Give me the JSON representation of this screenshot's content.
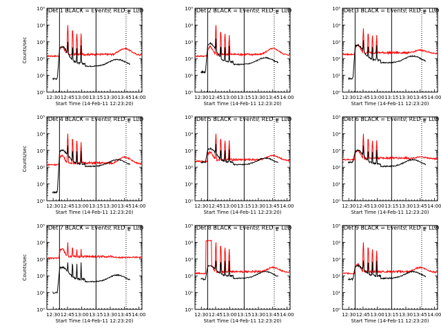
{
  "chart_data": [
    {
      "type": "line",
      "title": "Det 1  BLACK = Events, RED = LLD",
      "ylabel": "Counts/sec",
      "xlabel": "Start Time (14-Feb-11 12:23:20)",
      "xticks": [
        "12:30",
        "12:45",
        "13:00",
        "13:15",
        "13:30",
        "13:45",
        "14:00"
      ],
      "yticks": [
        "10⁰",
        "10¹",
        "10²",
        "10³",
        "10⁴",
        "10⁵"
      ],
      "ylim_log10": [
        0,
        5
      ],
      "xlim_minutes": [
        0,
        100
      ],
      "series": [
        {
          "name": "BLACK = Events",
          "color": "#000000",
          "start_log": 0.8,
          "peak_log": 2.7,
          "end_log": 1.5
        },
        {
          "name": "RED = LLD",
          "color": "#ff0000",
          "base_log": 2.2,
          "spikes_log": [
            4.0,
            3.9,
            3.6,
            3.5
          ],
          "hump_log": 2.6
        }
      ],
      "vlines_solid_min": [
        13.3,
        51.7
      ],
      "vlines_dotted_min": [
        83.3
      ],
      "marker": "E"
    },
    {
      "type": "line",
      "title": "Det 2  BLACK = Events, RED = LLD",
      "ylabel": "",
      "xlabel": "Start Time (14-Feb-11 12:23:20)",
      "xticks": [
        "12:30",
        "12:45",
        "13:00",
        "13:15",
        "13:30",
        "13:45",
        "14:00"
      ],
      "yticks": [
        "10⁰",
        "10¹",
        "10²",
        "10³",
        "10⁴",
        "10⁵"
      ],
      "ylim_log10": [
        0,
        5
      ],
      "xlim_minutes": [
        0,
        100
      ],
      "series": [
        {
          "name": "BLACK = Events",
          "color": "#000000",
          "start_log": 1.2,
          "peak_log": 2.9,
          "end_log": 1.6
        },
        {
          "name": "RED = LLD",
          "color": "#ff0000",
          "base_log": 2.2,
          "spikes_log": [
            4.0,
            3.8,
            3.6,
            3.4
          ],
          "hump_log": 2.6
        }
      ],
      "vlines_solid_min": [
        13.3,
        51.7
      ],
      "vlines_dotted_min": [
        83.3
      ],
      "marker": "E"
    },
    {
      "type": "line",
      "title": "Det 3  BLACK = Events, RED = LLD",
      "ylabel": "",
      "xlabel": "Start Time (14-Feb-11 12:23:20)",
      "xticks": [
        "12:30",
        "12:45",
        "13:00",
        "13:15",
        "13:30",
        "13:45",
        "14:00"
      ],
      "yticks": [
        "10⁰",
        "10¹",
        "10²",
        "10³",
        "10⁴",
        "10⁵"
      ],
      "ylim_log10": [
        0,
        5
      ],
      "xlim_minutes": [
        0,
        100
      ],
      "series": [
        {
          "name": "BLACK = Events",
          "color": "#000000",
          "start_log": 0.8,
          "peak_log": 2.8,
          "end_log": 1.7
        },
        {
          "name": "RED = LLD",
          "color": "#ff0000",
          "base_log": 2.3,
          "spikes_log": [
            3.8,
            3.7,
            3.5,
            3.4
          ],
          "hump_log": 2.5
        }
      ],
      "vlines_solid_min": [
        13.3,
        51.7
      ],
      "vlines_dotted_min": [
        83.3
      ],
      "marker": "E"
    },
    {
      "type": "line",
      "title": "Det 4  BLACK = Events, RED = LLD",
      "ylabel": "Counts/sec",
      "xlabel": "Start Time (14-Feb-11 12:23:20)",
      "xticks": [
        "12:30",
        "12:45",
        "13:00",
        "13:15",
        "13:30",
        "13:45",
        "14:00"
      ],
      "yticks": [
        "10⁰",
        "10¹",
        "10²",
        "10³",
        "10⁴",
        "10⁵"
      ],
      "ylim_log10": [
        0,
        5
      ],
      "xlim_minutes": [
        0,
        100
      ],
      "series": [
        {
          "name": "BLACK = Events",
          "color": "#000000",
          "start_log": 0.5,
          "peak_log": 3.0,
          "end_log": 2.0
        },
        {
          "name": "RED = LLD",
          "color": "#ff0000",
          "base_log": 2.2,
          "spikes_log": [
            4.0,
            3.9,
            3.7,
            3.5
          ],
          "hump_log": 2.6
        }
      ],
      "vlines_solid_min": [
        13.3,
        51.7
      ],
      "vlines_dotted_min": [
        83.3
      ],
      "marker": "E"
    },
    {
      "type": "line",
      "title": "Det 5  BLACK = Events, RED = LLD",
      "ylabel": "",
      "xlabel": "Start Time (14-Feb-11 12:23:20)",
      "xticks": [
        "12:30",
        "12:45",
        "13:00",
        "13:15",
        "13:30",
        "13:45",
        "14:00"
      ],
      "yticks": [
        "10⁰",
        "10¹",
        "10²",
        "10³",
        "10⁴",
        "10⁵"
      ],
      "ylim_log10": [
        0,
        5
      ],
      "xlim_minutes": [
        0,
        100
      ],
      "series": [
        {
          "name": "BLACK = Events",
          "color": "#000000",
          "start_log": 2.3,
          "peak_log": 3.1,
          "end_log": 2.1
        },
        {
          "name": "RED = LLD",
          "color": "#ff0000",
          "base_log": 2.4,
          "spikes_log": [
            4.0,
            3.9,
            3.7,
            3.6
          ],
          "hump_log": 2.7
        }
      ],
      "vlines_solid_min": [
        13.3,
        51.7
      ],
      "vlines_dotted_min": [
        83.3
      ],
      "marker": "E"
    },
    {
      "type": "line",
      "title": "Det 6  BLACK = Events, RED = LLD",
      "ylabel": "",
      "xlabel": "Start Time (14-Feb-11 12:23:20)",
      "xticks": [
        "12:30",
        "12:45",
        "13:00",
        "13:15",
        "13:30",
        "13:45",
        "14:00"
      ],
      "yticks": [
        "10⁰",
        "10¹",
        "10²",
        "10³",
        "10⁴",
        "10⁵"
      ],
      "ylim_log10": [
        0,
        5
      ],
      "xlim_minutes": [
        0,
        100
      ],
      "series": [
        {
          "name": "BLACK = Events",
          "color": "#000000",
          "start_log": 2.3,
          "peak_log": 3.0,
          "end_log": 2.0
        },
        {
          "name": "RED = LLD",
          "color": "#ff0000",
          "base_log": 2.5,
          "spikes_log": [
            4.0,
            3.9,
            3.7,
            3.6
          ],
          "hump_log": 2.6
        }
      ],
      "vlines_solid_min": [
        13.3,
        51.7
      ],
      "vlines_dotted_min": [
        83.3
      ],
      "marker": "E"
    },
    {
      "type": "line",
      "title": "Det 7  BLACK = Events, RED = LLD",
      "ylabel": "Counts/sec",
      "xlabel": "Start Time (14-Feb-11 12:23:20)",
      "xticks": [
        "12:30",
        "12:45",
        "13:00",
        "13:15",
        "13:30",
        "13:45",
        "14:00"
      ],
      "yticks": [
        "10⁰",
        "10¹",
        "10²",
        "10³",
        "10⁴",
        "10⁵"
      ],
      "ylim_log10": [
        0,
        5
      ],
      "xlim_minutes": [
        0,
        100
      ],
      "series": [
        {
          "name": "BLACK = Events",
          "color": "#000000",
          "start_log": 1.0,
          "peak_log": 2.5,
          "end_log": 1.6
        },
        {
          "name": "RED = LLD",
          "color": "#ff0000",
          "base_log": 3.1,
          "spikes_log": [
            4.0,
            3.9,
            3.7,
            3.6
          ],
          "hump_log": 3.1
        }
      ],
      "vlines_solid_min": [
        13.3,
        51.7
      ],
      "vlines_dotted_min": [
        83.3
      ],
      "marker": "E"
    },
    {
      "type": "line",
      "title": "Det 8  BLACK = Events, RED = LLD",
      "ylabel": "",
      "xlabel": "Start Time (14-Feb-11 12:23:20)",
      "xticks": [
        "12:30",
        "12:45",
        "13:00",
        "13:15",
        "13:30",
        "13:45",
        "14:00"
      ],
      "yticks": [
        "10⁰",
        "10¹",
        "10²",
        "10³",
        "10⁴",
        "10⁵"
      ],
      "ylim_log10": [
        0,
        5
      ],
      "xlim_minutes": [
        0,
        100
      ],
      "series": [
        {
          "name": "BLACK = Events",
          "color": "#000000",
          "start_log": 1.8,
          "peak_log": 2.6,
          "end_log": 1.8
        },
        {
          "name": "RED = LLD",
          "color": "#ff0000",
          "base_log": 2.2,
          "spikes_log": [
            4.0,
            4.0,
            3.8,
            3.6
          ],
          "hump_log": 2.5,
          "plateau_log": 4.1
        }
      ],
      "vlines_solid_min": [
        13.3,
        51.7
      ],
      "vlines_dotted_min": [
        83.3
      ],
      "marker": "E"
    },
    {
      "type": "line",
      "title": "Det 9  BLACK = Events, RED = LLD",
      "ylabel": "",
      "xlabel": "Start Time (14-Feb-11 12:23:20)",
      "xticks": [
        "12:30",
        "12:45",
        "13:00",
        "13:15",
        "13:30",
        "13:45",
        "14:00"
      ],
      "yticks": [
        "10⁰",
        "10¹",
        "10²",
        "10³",
        "10⁴",
        "10⁵"
      ],
      "ylim_log10": [
        0,
        5
      ],
      "xlim_minutes": [
        0,
        100
      ],
      "series": [
        {
          "name": "BLACK = Events",
          "color": "#000000",
          "start_log": 1.8,
          "peak_log": 2.6,
          "end_log": 1.8
        },
        {
          "name": "RED = LLD",
          "color": "#ff0000",
          "base_log": 2.2,
          "spikes_log": [
            4.0,
            3.9,
            3.7,
            3.5
          ],
          "hump_log": 2.5
        }
      ],
      "vlines_solid_min": [
        13.3,
        51.7
      ],
      "vlines_dotted_min": [
        83.3
      ],
      "marker": "E"
    }
  ]
}
